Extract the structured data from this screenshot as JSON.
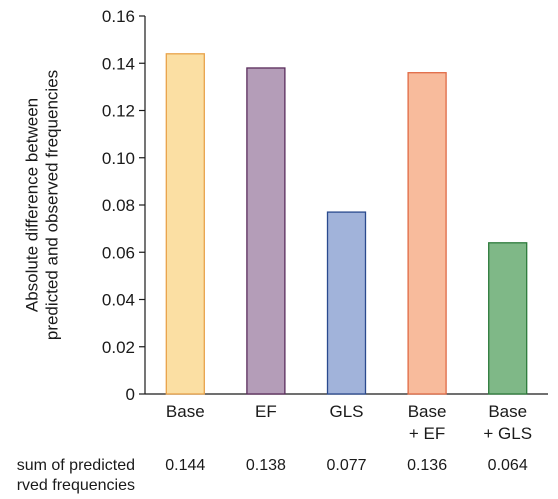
{
  "chart_data": {
    "type": "bar",
    "categories": [
      [
        "Base"
      ],
      [
        "EF"
      ],
      [
        "GLS"
      ],
      [
        "Base",
        "+ EF"
      ],
      [
        "Base",
        "+ GLS"
      ]
    ],
    "values": [
      0.144,
      0.138,
      0.077,
      0.136,
      0.064
    ],
    "colors": [
      "#fbdfa3",
      "#b49db8",
      "#a1b3da",
      "#f8bb9c",
      "#7fb887"
    ],
    "edge_colors": [
      "#e8a24a",
      "#5a2d5c",
      "#2a4a8e",
      "#e06a45",
      "#2c7a3b"
    ],
    "title": "",
    "xlabel": "",
    "ylabel": [
      "Absolute difference between",
      "predicted and observed frequencies"
    ],
    "ylim": [
      0,
      0.16
    ],
    "yticks": [
      "0",
      "0.02",
      "0.04",
      "0.06",
      "0.08",
      "0.10",
      "0.12",
      "0.14",
      "0.16"
    ],
    "grid": false,
    "row_label": [
      "sum of predicted",
      "rved frequencies"
    ],
    "row_values": [
      "0.144",
      "0.138",
      "0.077",
      "0.136",
      "0.064"
    ]
  }
}
